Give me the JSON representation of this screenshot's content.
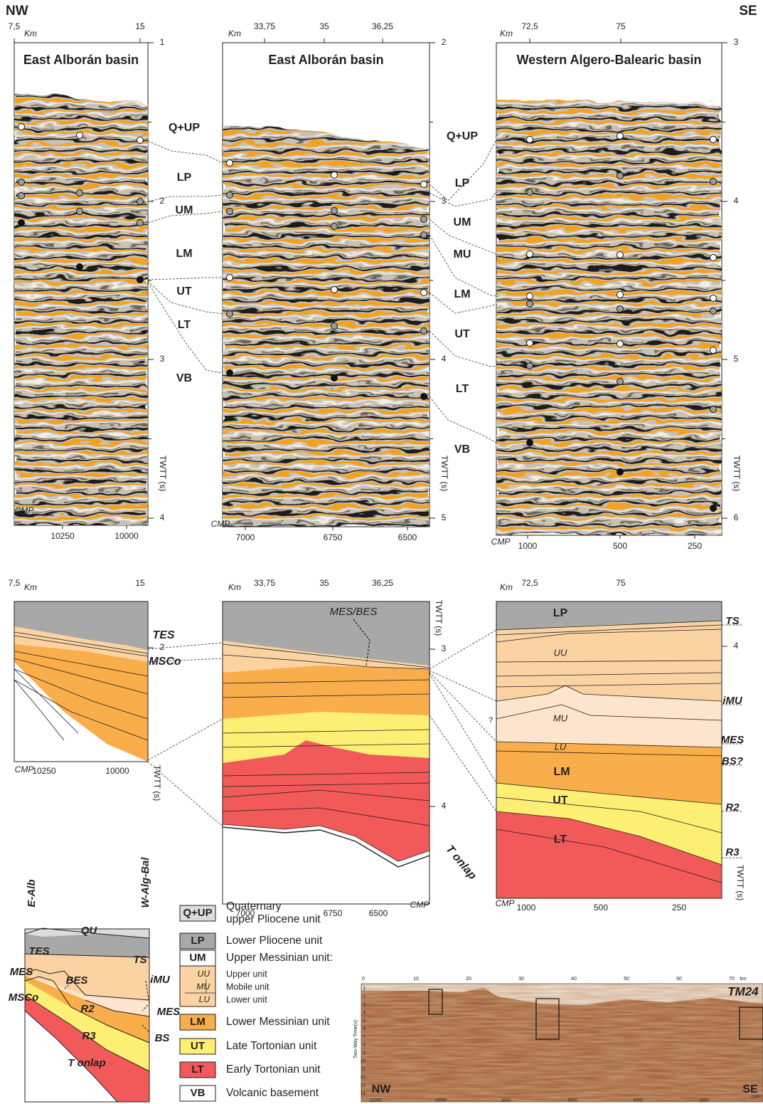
{
  "direction": {
    "left": "NW",
    "right": "SE"
  },
  "seismic_panels": [
    {
      "title": "East Alborán basin",
      "km_unit": "Km",
      "km_ticks": [
        "7,5",
        "15"
      ],
      "twtt_ticks": [
        "1",
        "2",
        "3",
        "4"
      ],
      "twtt_label": "TWTT (s)",
      "cmp_label": "CMP",
      "cmp_ticks": [
        "10250",
        "10000"
      ]
    },
    {
      "title": "East Alborán basin",
      "km_unit": "Km",
      "km_ticks": [
        "33,75",
        "35",
        "36,25"
      ],
      "twtt_ticks": [
        "2",
        "3",
        "4",
        "5"
      ],
      "twtt_label": "TWTT (s)",
      "cmp_label": "CMP",
      "cmp_ticks": [
        "7000",
        "6750",
        "6500"
      ]
    },
    {
      "title": "Western Algero-Balearic basin",
      "km_unit": "Km",
      "km_ticks": [
        "72,5",
        "75"
      ],
      "twtt_ticks": [
        "3",
        "4",
        "5",
        "6"
      ],
      "twtt_label": "TWTT (s)",
      "cmp_label": "CMP",
      "cmp_ticks": [
        "1000",
        "500",
        "250"
      ]
    }
  ],
  "unit_labels": [
    [
      "Q+UP",
      "LP",
      "UM",
      "LM",
      "UT",
      "LT",
      "VB"
    ],
    [
      "Q+UP",
      "LP",
      "UM",
      "MU",
      "LM",
      "UT",
      "LT",
      "VB"
    ]
  ],
  "sections": [
    {
      "km_unit": "Km",
      "km_ticks": [
        "7,5",
        "15"
      ],
      "twtt_ticks": [
        "2"
      ],
      "twtt_label": "TWTT (s)",
      "cmp_label": "CMP",
      "cmp_ticks": [
        "10250",
        "10000"
      ],
      "horizons": [
        "TES",
        "MSCo"
      ]
    },
    {
      "km_unit": "Km",
      "km_ticks": [
        "33,75",
        "35",
        "36,25"
      ],
      "twtt_ticks": [
        "3",
        "4"
      ],
      "twtt_label": "TWTT (s)",
      "cmp_label": "CMP",
      "cmp_ticks": [
        "7000",
        "6750",
        "6500"
      ],
      "horizons": [
        "MES/BES",
        "?",
        "T onlap"
      ]
    },
    {
      "km_unit": "Km",
      "km_ticks": [
        "72,5",
        "75"
      ],
      "twtt_ticks": [
        "4"
      ],
      "twtt_label": "TWTT (s)",
      "cmp_label": "CMP",
      "cmp_ticks": [
        "1000",
        "500",
        "250"
      ],
      "units": [
        "LP",
        "UU",
        "MU",
        "LU",
        "LM",
        "UT",
        "LT"
      ],
      "horizons": [
        "TS",
        "iMU",
        "MES",
        "BS?",
        "R2",
        "R3"
      ]
    }
  ],
  "schematic": {
    "ends": [
      "E-Alb",
      "W-Alg-Bal"
    ],
    "labels": [
      "QU",
      "TES",
      "TS",
      "MES",
      "BES",
      "iMU",
      "MSCo",
      "MES",
      "R2",
      "BS",
      "R3",
      "T onlap"
    ]
  },
  "legend": [
    {
      "code": "Q+UP",
      "label": [
        "Quaternary",
        "upper Pliocene unit"
      ]
    },
    {
      "code": "LP",
      "label": [
        "Lower Pliocene unit"
      ]
    },
    {
      "code": "UM",
      "label": [
        "Upper Messinian unit:"
      ],
      "subunits": [
        {
          "code": "UU",
          "label": "Upper unit"
        },
        {
          "code": "MU",
          "label": "Mobile unit"
        },
        {
          "code": "LU",
          "label": "Lower unit"
        }
      ]
    },
    {
      "code": "LM",
      "label": [
        "Lower Messinian unit"
      ]
    },
    {
      "code": "UT",
      "label": [
        "Late Tortonian unit"
      ]
    },
    {
      "code": "LT",
      "label": [
        "Early Tortonian unit"
      ]
    },
    {
      "code": "VB",
      "label": [
        "Volcanic basement"
      ]
    }
  ],
  "profile": {
    "name": "TM24",
    "km_unit": "km",
    "km_ticks": [
      "0",
      "10",
      "20",
      "30",
      "40",
      "50",
      "60",
      "70"
    ],
    "twtt_label": "Two-Way Time(s)",
    "twtt_ticks": [
      "1",
      "2",
      "3",
      "4",
      "5",
      "6",
      "7",
      "8",
      "9",
      "10",
      "11",
      "12",
      "13",
      "14"
    ],
    "cmp_label": "CMP",
    "cmp_ticks": [
      "12000",
      "10000",
      "8000",
      "6000",
      "4000",
      "2000"
    ],
    "ends": [
      "NW",
      "SE"
    ]
  }
}
